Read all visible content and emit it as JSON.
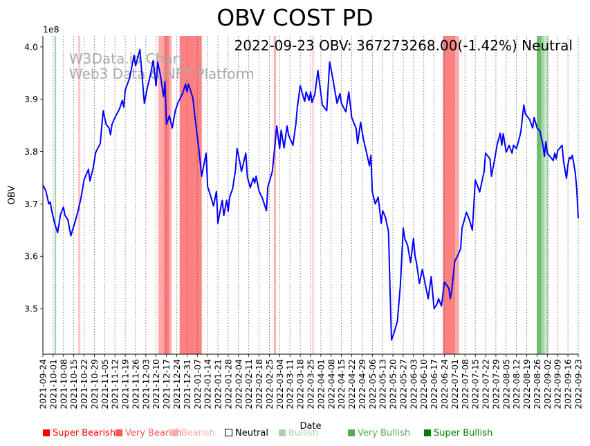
{
  "chart_data": {
    "type": "line",
    "title": "OBV COST PD",
    "annotation": "2022-09-23 OBV: 367273268.00(-1.42%) Neutral",
    "watermark": [
      "W3Data.io Chart",
      "Web3 Data & NFT Platform"
    ],
    "xlabel": "Date",
    "ylabel": "OBV",
    "y_scale_label": "1e8",
    "ylim": [
      3.413,
      4.021
    ],
    "xlim_days": [
      0,
      364
    ],
    "yticks": [
      "3.5",
      "3.6",
      "3.7",
      "3.8",
      "3.9",
      "4.0"
    ],
    "ytick_values": [
      3.5,
      3.6,
      3.7,
      3.8,
      3.9,
      4.0
    ],
    "xticks": [
      "2021-09-24",
      "2021-10-01",
      "2021-10-08",
      "2021-10-15",
      "2021-10-22",
      "2021-10-29",
      "2021-11-05",
      "2021-11-12",
      "2021-11-19",
      "2021-11-26",
      "2021-12-03",
      "2021-12-10",
      "2021-12-17",
      "2021-12-24",
      "2021-12-31",
      "2022-01-07",
      "2022-01-14",
      "2022-01-21",
      "2022-01-28",
      "2022-02-04",
      "2022-02-11",
      "2022-02-18",
      "2022-02-25",
      "2022-03-04",
      "2022-03-11",
      "2022-03-18",
      "2022-03-25",
      "2022-04-01",
      "2022-04-08",
      "2022-04-15",
      "2022-04-22",
      "2022-04-29",
      "2022-05-06",
      "2022-05-13",
      "2022-05-20",
      "2022-05-27",
      "2022-06-03",
      "2022-06-10",
      "2022-06-17",
      "2022-06-24",
      "2022-07-01",
      "2022-07-08",
      "2022-07-15",
      "2022-07-22",
      "2022-07-29",
      "2022-08-05",
      "2022-08-12",
      "2022-08-19",
      "2022-08-26",
      "2022-09-02",
      "2022-09-09",
      "2022-09-16",
      "2022-09-23"
    ],
    "series": [
      {
        "name": "OBV",
        "color": "#0000ff",
        "points_day_value": [
          [
            0,
            3.736
          ],
          [
            2,
            3.725
          ],
          [
            4,
            3.7
          ],
          [
            5,
            3.704
          ],
          [
            6,
            3.687
          ],
          [
            8,
            3.663
          ],
          [
            10,
            3.645
          ],
          [
            12,
            3.68
          ],
          [
            14,
            3.694
          ],
          [
            15,
            3.678
          ],
          [
            17,
            3.67
          ],
          [
            19,
            3.639
          ],
          [
            22,
            3.667
          ],
          [
            24,
            3.687
          ],
          [
            26,
            3.713
          ],
          [
            28,
            3.746
          ],
          [
            31,
            3.766
          ],
          [
            32,
            3.744
          ],
          [
            34,
            3.766
          ],
          [
            36,
            3.799
          ],
          [
            39,
            3.815
          ],
          [
            41,
            3.878
          ],
          [
            43,
            3.852
          ],
          [
            45,
            3.845
          ],
          [
            46,
            3.832
          ],
          [
            47,
            3.852
          ],
          [
            49,
            3.865
          ],
          [
            52,
            3.881
          ],
          [
            54,
            3.898
          ],
          [
            55,
            3.885
          ],
          [
            56,
            3.918
          ],
          [
            59,
            3.941
          ],
          [
            62,
            3.984
          ],
          [
            63,
            3.964
          ],
          [
            66,
            3.995
          ],
          [
            69,
            3.892
          ],
          [
            71,
            3.922
          ],
          [
            73,
            3.945
          ],
          [
            75,
            3.974
          ],
          [
            77,
            3.925
          ],
          [
            78,
            3.971
          ],
          [
            80,
            3.945
          ],
          [
            82,
            3.905
          ],
          [
            83,
            3.934
          ],
          [
            84,
            3.852
          ],
          [
            86,
            3.868
          ],
          [
            88,
            3.845
          ],
          [
            90,
            3.878
          ],
          [
            92,
            3.894
          ],
          [
            95,
            3.911
          ],
          [
            97,
            3.929
          ],
          [
            98,
            3.914
          ],
          [
            99,
            3.929
          ],
          [
            102,
            3.902
          ],
          [
            104,
            3.852
          ],
          [
            106,
            3.806
          ],
          [
            108,
            3.753
          ],
          [
            111,
            3.797
          ],
          [
            112,
            3.733
          ],
          [
            114,
            3.716
          ],
          [
            116,
            3.696
          ],
          [
            118,
            3.724
          ],
          [
            119,
            3.663
          ],
          [
            121,
            3.694
          ],
          [
            122,
            3.707
          ],
          [
            123,
            3.678
          ],
          [
            125,
            3.707
          ],
          [
            126,
            3.686
          ],
          [
            127,
            3.713
          ],
          [
            129,
            3.729
          ],
          [
            131,
            3.766
          ],
          [
            132,
            3.806
          ],
          [
            134,
            3.779
          ],
          [
            135,
            3.762
          ],
          [
            138,
            3.797
          ],
          [
            139,
            3.752
          ],
          [
            141,
            3.731
          ],
          [
            143,
            3.749
          ],
          [
            144,
            3.74
          ],
          [
            145,
            3.753
          ],
          [
            147,
            3.724
          ],
          [
            149,
            3.713
          ],
          [
            152,
            3.687
          ],
          [
            153,
            3.733
          ],
          [
            156,
            3.762
          ],
          [
            158,
            3.819
          ],
          [
            159,
            3.849
          ],
          [
            161,
            3.806
          ],
          [
            162,
            3.841
          ],
          [
            164,
            3.807
          ],
          [
            166,
            3.849
          ],
          [
            167,
            3.832
          ],
          [
            170,
            3.812
          ],
          [
            172,
            3.852
          ],
          [
            173,
            3.885
          ],
          [
            175,
            3.926
          ],
          [
            177,
            3.905
          ],
          [
            178,
            3.896
          ],
          [
            179,
            3.914
          ],
          [
            181,
            3.898
          ],
          [
            182,
            3.914
          ],
          [
            183,
            3.894
          ],
          [
            185,
            3.911
          ],
          [
            187,
            3.955
          ],
          [
            189,
            3.911
          ],
          [
            190,
            3.889
          ],
          [
            193,
            3.878
          ],
          [
            195,
            3.971
          ],
          [
            197,
            3.942
          ],
          [
            198,
            3.925
          ],
          [
            200,
            3.892
          ],
          [
            202,
            3.911
          ],
          [
            203,
            3.892
          ],
          [
            206,
            3.876
          ],
          [
            208,
            3.914
          ],
          [
            210,
            3.865
          ],
          [
            213,
            3.844
          ],
          [
            214,
            3.815
          ],
          [
            216,
            3.856
          ],
          [
            218,
            3.823
          ],
          [
            220,
            3.799
          ],
          [
            222,
            3.773
          ],
          [
            223,
            3.793
          ],
          [
            224,
            3.723
          ],
          [
            226,
            3.7
          ],
          [
            228,
            3.713
          ],
          [
            230,
            3.663
          ],
          [
            231,
            3.687
          ],
          [
            233,
            3.674
          ],
          [
            235,
            3.647
          ],
          [
            236,
            3.542
          ],
          [
            237,
            3.44
          ],
          [
            239,
            3.456
          ],
          [
            241,
            3.476
          ],
          [
            243,
            3.542
          ],
          [
            245,
            3.654
          ],
          [
            246,
            3.634
          ],
          [
            248,
            3.621
          ],
          [
            250,
            3.588
          ],
          [
            252,
            3.634
          ],
          [
            253,
            3.601
          ],
          [
            254,
            3.588
          ],
          [
            256,
            3.548
          ],
          [
            258,
            3.575
          ],
          [
            260,
            3.546
          ],
          [
            262,
            3.519
          ],
          [
            264,
            3.561
          ],
          [
            266,
            3.5
          ],
          [
            268,
            3.509
          ],
          [
            269,
            3.519
          ],
          [
            271,
            3.505
          ],
          [
            273,
            3.551
          ],
          [
            276,
            3.539
          ],
          [
            277,
            3.519
          ],
          [
            278,
            3.535
          ],
          [
            280,
            3.59
          ],
          [
            282,
            3.601
          ],
          [
            284,
            3.614
          ],
          [
            285,
            3.654
          ],
          [
            288,
            3.684
          ],
          [
            290,
            3.67
          ],
          [
            292,
            3.65
          ],
          [
            294,
            3.746
          ],
          [
            297,
            3.723
          ],
          [
            300,
            3.762
          ],
          [
            301,
            3.797
          ],
          [
            304,
            3.786
          ],
          [
            305,
            3.753
          ],
          [
            307,
            3.783
          ],
          [
            309,
            3.815
          ],
          [
            311,
            3.835
          ],
          [
            312,
            3.812
          ],
          [
            313,
            3.834
          ],
          [
            315,
            3.799
          ],
          [
            317,
            3.812
          ],
          [
            319,
            3.797
          ],
          [
            320,
            3.812
          ],
          [
            322,
            3.806
          ],
          [
            324,
            3.826
          ],
          [
            325,
            3.839
          ],
          [
            327,
            3.889
          ],
          [
            328,
            3.872
          ],
          [
            331,
            3.861
          ],
          [
            333,
            3.845
          ],
          [
            334,
            3.865
          ],
          [
            336,
            3.845
          ],
          [
            338,
            3.839
          ],
          [
            340,
            3.812
          ],
          [
            341,
            3.791
          ],
          [
            342,
            3.819
          ],
          [
            343,
            3.797
          ],
          [
            347,
            3.783
          ],
          [
            348,
            3.797
          ],
          [
            349,
            3.786
          ],
          [
            350,
            3.802
          ],
          [
            353,
            3.812
          ],
          [
            354,
            3.782
          ],
          [
            356,
            3.749
          ],
          [
            357,
            3.775
          ],
          [
            358,
            3.789
          ],
          [
            359,
            3.786
          ],
          [
            360,
            3.793
          ],
          [
            362,
            3.76
          ],
          [
            363,
            3.727
          ],
          [
            364,
            3.673
          ]
        ]
      }
    ],
    "regions": [
      {
        "start_day": 8,
        "end_day": 9,
        "signal": "Bullish",
        "color": "#9fd09f"
      },
      {
        "start_day": 24,
        "end_day": 25.5,
        "signal": "Bearish",
        "color": "#ffc8c8"
      },
      {
        "start_day": 78.5,
        "end_day": 82,
        "signal": "Bearish",
        "color": "#ffaaaa"
      },
      {
        "start_day": 82,
        "end_day": 86,
        "signal": "Very Bearish",
        "color": "#ff8080"
      },
      {
        "start_day": 86,
        "end_day": 87.5,
        "signal": "Bearish",
        "color": "#ffaaaa"
      },
      {
        "start_day": 93,
        "end_day": 108,
        "signal": "Very Bearish",
        "color": "#ff8080"
      },
      {
        "start_day": 157,
        "end_day": 158.5,
        "signal": "Bearish",
        "color": "#ffb0b0"
      },
      {
        "start_day": 183,
        "end_day": 184.5,
        "signal": "Bearish",
        "color": "#ffd8d8"
      },
      {
        "start_day": 272,
        "end_day": 280,
        "signal": "Very Bearish",
        "color": "#ff8080"
      },
      {
        "start_day": 280,
        "end_day": 283,
        "signal": "Bearish",
        "color": "#ffaaaa"
      },
      {
        "start_day": 336,
        "end_day": 339,
        "signal": "Very Bullish",
        "color": "#6cbf6c"
      },
      {
        "start_day": 339,
        "end_day": 341,
        "signal": "Bullish",
        "color": "#a8d8a8"
      },
      {
        "start_day": 341,
        "end_day": 344,
        "signal": "Bullish",
        "color": "#c8e6c8"
      }
    ],
    "legend_placement": "bottom",
    "legend": [
      {
        "label": "Super Bearish",
        "color": "#ff0000",
        "text_color": "#ff0000"
      },
      {
        "label": "Very Bearish",
        "color": "#ff5555",
        "text_color": "#ff5555"
      },
      {
        "label": "Bearish",
        "color": "#ffaaaa",
        "text_color": "#ffaaaa"
      },
      {
        "label": "Neutral",
        "color": "#ffffff",
        "text_color": "#000000"
      },
      {
        "label": "Bullish",
        "color": "#aad5aa",
        "text_color": "#aad5aa"
      },
      {
        "label": "Very Bullish",
        "color": "#55aa55",
        "text_color": "#55aa55"
      },
      {
        "label": "Super Bullish",
        "color": "#008000",
        "text_color": "#008000"
      }
    ]
  }
}
